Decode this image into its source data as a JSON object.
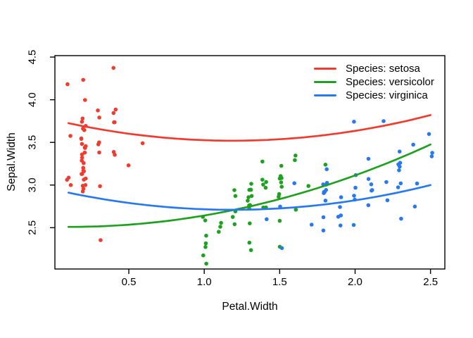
{
  "figure": {
    "background": "#ffffff",
    "frame_color": "#000000",
    "text_color": "#000000"
  },
  "chart_data": {
    "type": "scatter",
    "title": "",
    "xlabel": "Petal.Width",
    "ylabel": "Sepal.Width",
    "xlim": [
      0.01,
      2.595
    ],
    "ylim": [
      2.016,
      4.517
    ],
    "xticks": [
      0.5,
      1.0,
      1.5,
      2.0,
      2.5
    ],
    "yticks": [
      2.5,
      3.0,
      3.5,
      4.0,
      4.5
    ],
    "grid": false,
    "marker": "filled-circle",
    "legend": {
      "position": "top-right-inside",
      "frame": false,
      "entries": [
        {
          "label": "Species: setosa",
          "color": "#f03b2f"
        },
        {
          "label": "Species: versicolor",
          "color": "#20a020"
        },
        {
          "label": "Species: virginica",
          "color": "#2878f0"
        }
      ]
    },
    "series": [
      {
        "name": "setosa",
        "legend_label": "Species: setosa",
        "color": "#f03b2f",
        "points": [
          [
            0.2,
            3.5
          ],
          [
            0.2,
            3.0
          ],
          [
            0.2,
            3.2
          ],
          [
            0.2,
            3.1
          ],
          [
            0.2,
            3.6
          ],
          [
            0.4,
            3.9
          ],
          [
            0.3,
            3.4
          ],
          [
            0.2,
            3.4
          ],
          [
            0.2,
            2.9
          ],
          [
            0.1,
            3.1
          ],
          [
            0.2,
            3.7
          ],
          [
            0.2,
            3.4
          ],
          [
            0.1,
            3.0
          ],
          [
            0.1,
            3.0
          ],
          [
            0.2,
            4.0
          ],
          [
            0.4,
            4.4
          ],
          [
            0.4,
            3.9
          ],
          [
            0.3,
            3.5
          ],
          [
            0.3,
            3.8
          ],
          [
            0.3,
            3.8
          ],
          [
            0.2,
            3.4
          ],
          [
            0.4,
            3.7
          ],
          [
            0.2,
            3.6
          ],
          [
            0.5,
            3.3
          ],
          [
            0.2,
            3.4
          ],
          [
            0.2,
            3.0
          ],
          [
            0.4,
            3.4
          ],
          [
            0.2,
            3.5
          ],
          [
            0.2,
            3.4
          ],
          [
            0.2,
            3.2
          ],
          [
            0.2,
            3.1
          ],
          [
            0.4,
            3.4
          ],
          [
            0.1,
            4.1
          ],
          [
            0.2,
            4.2
          ],
          [
            0.2,
            3.1
          ],
          [
            0.2,
            3.2
          ],
          [
            0.2,
            3.5
          ],
          [
            0.1,
            3.6
          ],
          [
            0.2,
            3.0
          ],
          [
            0.2,
            3.4
          ],
          [
            0.3,
            3.5
          ],
          [
            0.3,
            2.3
          ],
          [
            0.2,
            3.2
          ],
          [
            0.6,
            3.5
          ],
          [
            0.4,
            3.8
          ],
          [
            0.3,
            3.0
          ],
          [
            0.2,
            3.8
          ],
          [
            0.2,
            3.2
          ],
          [
            0.2,
            3.7
          ],
          [
            0.2,
            3.3
          ]
        ],
        "fit_curve": {
          "type": "quadratic",
          "x_range": [
            0.1,
            2.5
          ],
          "coefficients": {
            "intercept": 3.765,
            "x": -0.413,
            "x2": 0.174
          },
          "y_at_x0.1": 3.72,
          "y_min": 3.52,
          "y_at_x2.5": 3.82
        }
      },
      {
        "name": "versicolor",
        "legend_label": "Species: versicolor",
        "color": "#20a020",
        "points": [
          [
            1.4,
            3.2
          ],
          [
            1.5,
            3.2
          ],
          [
            1.5,
            3.1
          ],
          [
            1.3,
            2.3
          ],
          [
            1.5,
            2.8
          ],
          [
            1.3,
            2.8
          ],
          [
            1.6,
            3.3
          ],
          [
            1.0,
            2.4
          ],
          [
            1.3,
            2.9
          ],
          [
            1.4,
            2.7
          ],
          [
            1.0,
            2.0
          ],
          [
            1.5,
            3.0
          ],
          [
            1.0,
            2.2
          ],
          [
            1.4,
            2.9
          ],
          [
            1.3,
            2.9
          ],
          [
            1.4,
            3.1
          ],
          [
            1.5,
            3.0
          ],
          [
            1.0,
            2.7
          ],
          [
            1.5,
            2.2
          ],
          [
            1.1,
            2.5
          ],
          [
            1.8,
            3.2
          ],
          [
            1.3,
            2.8
          ],
          [
            1.5,
            2.5
          ],
          [
            1.2,
            2.8
          ],
          [
            1.3,
            2.9
          ],
          [
            1.4,
            3.0
          ],
          [
            1.4,
            2.8
          ],
          [
            1.7,
            3.0
          ],
          [
            1.5,
            2.9
          ],
          [
            1.0,
            2.6
          ],
          [
            1.1,
            2.4
          ],
          [
            1.0,
            2.4
          ],
          [
            1.2,
            2.7
          ],
          [
            1.6,
            2.7
          ],
          [
            1.5,
            3.0
          ],
          [
            1.6,
            3.4
          ],
          [
            1.5,
            3.1
          ],
          [
            1.3,
            2.3
          ],
          [
            1.3,
            3.0
          ],
          [
            1.3,
            2.5
          ],
          [
            1.2,
            2.6
          ],
          [
            1.4,
            3.0
          ],
          [
            1.2,
            2.6
          ],
          [
            1.0,
            2.3
          ],
          [
            1.3,
            2.7
          ],
          [
            1.2,
            3.0
          ],
          [
            1.3,
            2.9
          ],
          [
            1.3,
            2.9
          ],
          [
            1.1,
            2.5
          ],
          [
            1.3,
            2.8
          ]
        ],
        "fit_curve": {
          "type": "quadratic",
          "x_range": [
            0.1,
            2.5
          ],
          "coefficients": {
            "intercept": 2.512,
            "x": -0.0385,
            "x2": 0.1695
          },
          "y_at_x0.1": 2.51,
          "y_min": 2.51,
          "y_at_x2.5": 3.48
        }
      },
      {
        "name": "virginica",
        "legend_label": "Species: virginica",
        "color": "#2878f0",
        "points": [
          [
            2.5,
            3.3
          ],
          [
            1.9,
            2.7
          ],
          [
            2.1,
            3.0
          ],
          [
            1.8,
            2.9
          ],
          [
            2.2,
            3.0
          ],
          [
            2.1,
            3.0
          ],
          [
            1.7,
            2.5
          ],
          [
            1.8,
            2.9
          ],
          [
            1.8,
            2.5
          ],
          [
            2.5,
            3.6
          ],
          [
            2.0,
            3.2
          ],
          [
            1.9,
            2.7
          ],
          [
            2.1,
            3.0
          ],
          [
            2.0,
            2.5
          ],
          [
            2.4,
            2.8
          ],
          [
            2.3,
            3.2
          ],
          [
            1.8,
            3.0
          ],
          [
            2.2,
            3.8
          ],
          [
            2.3,
            2.6
          ],
          [
            1.5,
            2.2
          ],
          [
            2.3,
            3.2
          ],
          [
            2.0,
            2.8
          ],
          [
            2.0,
            2.8
          ],
          [
            1.8,
            2.7
          ],
          [
            2.1,
            3.3
          ],
          [
            1.8,
            3.2
          ],
          [
            1.8,
            2.8
          ],
          [
            1.8,
            3.0
          ],
          [
            2.1,
            2.8
          ],
          [
            1.6,
            3.0
          ],
          [
            1.9,
            2.8
          ],
          [
            2.0,
            3.8
          ],
          [
            2.2,
            2.8
          ],
          [
            1.5,
            2.8
          ],
          [
            1.4,
            2.6
          ],
          [
            2.3,
            3.0
          ],
          [
            2.4,
            3.4
          ],
          [
            1.8,
            3.1
          ],
          [
            1.8,
            3.0
          ],
          [
            2.1,
            3.1
          ],
          [
            2.4,
            3.1
          ],
          [
            2.3,
            3.1
          ],
          [
            1.9,
            2.7
          ],
          [
            2.3,
            3.2
          ],
          [
            2.5,
            3.3
          ],
          [
            2.3,
            3.0
          ],
          [
            1.9,
            2.5
          ],
          [
            2.0,
            3.0
          ],
          [
            2.3,
            3.4
          ],
          [
            1.8,
            3.0
          ]
        ],
        "fit_curve": {
          "type": "quadratic",
          "x_range": [
            0.1,
            2.5
          ],
          "coefficients": {
            "intercept": 2.949,
            "x": -0.402,
            "x2": 0.169
          },
          "y_at_x0.1": 2.91,
          "y_min": 2.71,
          "y_at_x2.5": 3.0
        }
      }
    ]
  }
}
